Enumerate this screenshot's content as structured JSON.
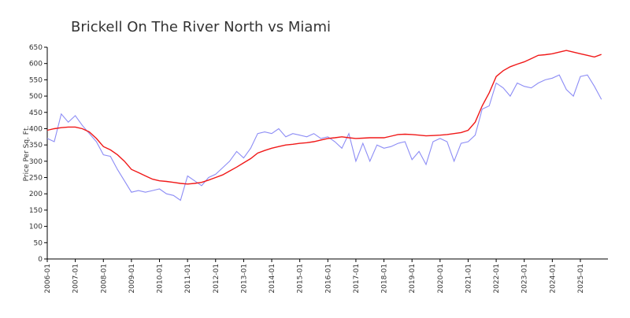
{
  "chart_data": {
    "type": "line",
    "title": "Brickell On The River North vs Miami",
    "y_label": "Price Per Sq. Ft.",
    "x": [
      "2006-01",
      "2006-04",
      "2006-07",
      "2006-10",
      "2007-01",
      "2007-04",
      "2007-07",
      "2007-10",
      "2008-01",
      "2008-04",
      "2008-07",
      "2008-10",
      "2009-01",
      "2009-04",
      "2009-07",
      "2009-10",
      "2010-01",
      "2010-04",
      "2010-07",
      "2010-10",
      "2011-01",
      "2011-04",
      "2011-07",
      "2011-10",
      "2012-01",
      "2012-04",
      "2012-07",
      "2012-10",
      "2013-01",
      "2013-04",
      "2013-07",
      "2013-10",
      "2014-01",
      "2014-04",
      "2014-07",
      "2014-10",
      "2015-01",
      "2015-04",
      "2015-07",
      "2015-10",
      "2016-01",
      "2016-04",
      "2016-07",
      "2016-10",
      "2017-01",
      "2017-04",
      "2017-07",
      "2017-10",
      "2018-01",
      "2018-04",
      "2018-07",
      "2018-10",
      "2019-01",
      "2019-04",
      "2019-07",
      "2019-10",
      "2020-01",
      "2020-04",
      "2020-07",
      "2020-10",
      "2021-01",
      "2021-04",
      "2021-07",
      "2021-10",
      "2022-01",
      "2022-04",
      "2022-07",
      "2022-10",
      "2023-01",
      "2023-04",
      "2023-07",
      "2023-10",
      "2024-01",
      "2024-04",
      "2024-07",
      "2024-10",
      "2025-01",
      "2025-04",
      "2025-07",
      "2025-10"
    ],
    "series": [
      {
        "color": "#8c8cf5",
        "values": [
          370,
          360,
          445,
          420,
          440,
          410,
          385,
          360,
          320,
          315,
          275,
          240,
          205,
          210,
          205,
          210,
          215,
          200,
          195,
          180,
          255,
          240,
          225,
          250,
          260,
          280,
          300,
          330,
          310,
          340,
          385,
          390,
          385,
          400,
          375,
          385,
          380,
          375,
          385,
          370,
          375,
          360,
          340,
          385,
          300,
          355,
          300,
          350,
          340,
          345,
          355,
          360,
          305,
          330,
          290,
          360,
          370,
          360,
          300,
          355,
          360,
          380,
          460,
          470,
          540,
          525,
          500,
          540,
          530,
          525,
          540,
          550,
          555,
          565,
          520,
          500,
          560,
          565,
          530,
          490
        ]
      },
      {
        "color": "#f01818",
        "values": [
          395,
          400,
          403,
          405,
          405,
          400,
          390,
          370,
          345,
          335,
          320,
          300,
          275,
          265,
          255,
          245,
          240,
          238,
          235,
          232,
          230,
          232,
          235,
          242,
          250,
          258,
          270,
          282,
          295,
          308,
          325,
          333,
          340,
          345,
          350,
          352,
          355,
          357,
          360,
          365,
          370,
          372,
          375,
          372,
          370,
          371,
          372,
          372,
          372,
          377,
          382,
          383,
          382,
          380,
          378,
          379,
          380,
          382,
          385,
          388,
          395,
          420,
          470,
          510,
          560,
          578,
          590,
          598,
          605,
          615,
          625,
          627,
          630,
          635,
          640,
          635,
          630,
          625,
          620,
          628
        ]
      }
    ],
    "xticks": [
      "2006-01",
      "2007-01",
      "2008-01",
      "2009-01",
      "2010-01",
      "2011-01",
      "2012-01",
      "2013-01",
      "2014-01",
      "2015-01",
      "2016-01",
      "2017-01",
      "2018-01",
      "2019-01",
      "2020-01",
      "2021-01",
      "2022-01",
      "2023-01",
      "2024-01",
      "2025-01"
    ],
    "ylim": [
      0,
      650
    ],
    "yticks": [
      0,
      50,
      100,
      150,
      200,
      250,
      300,
      350,
      400,
      450,
      500,
      550,
      600,
      650
    ]
  }
}
